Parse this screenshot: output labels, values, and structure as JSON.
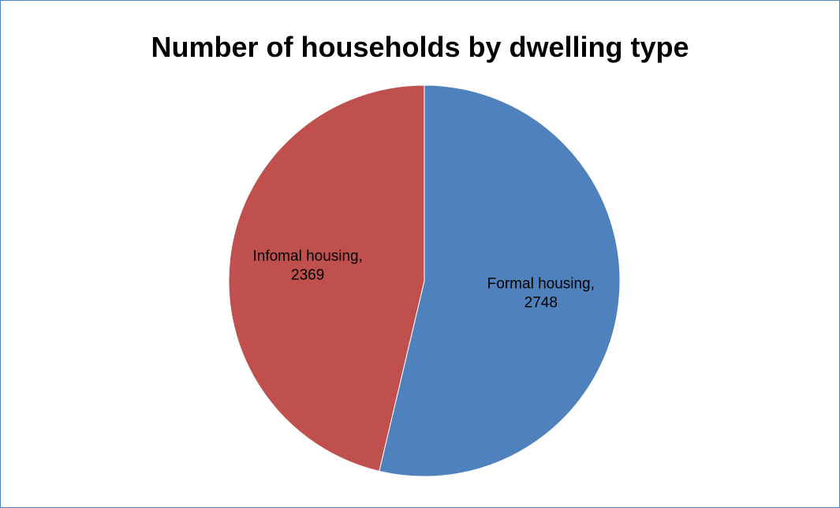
{
  "chart_data": {
    "type": "pie",
    "title": "Number of households by dwelling type",
    "categories": [
      "Formal housing",
      "Infomal housing"
    ],
    "values": [
      2748,
      2369
    ],
    "colors": [
      "#4f81bd",
      "#c0504d"
    ],
    "labels": [
      {
        "line1": "Formal housing,",
        "line2": "2748"
      },
      {
        "line1": "Infomal housing,",
        "line2": "2369"
      }
    ],
    "start_angle": "12 o'clock",
    "direction": "clockwise",
    "legend": "none"
  }
}
